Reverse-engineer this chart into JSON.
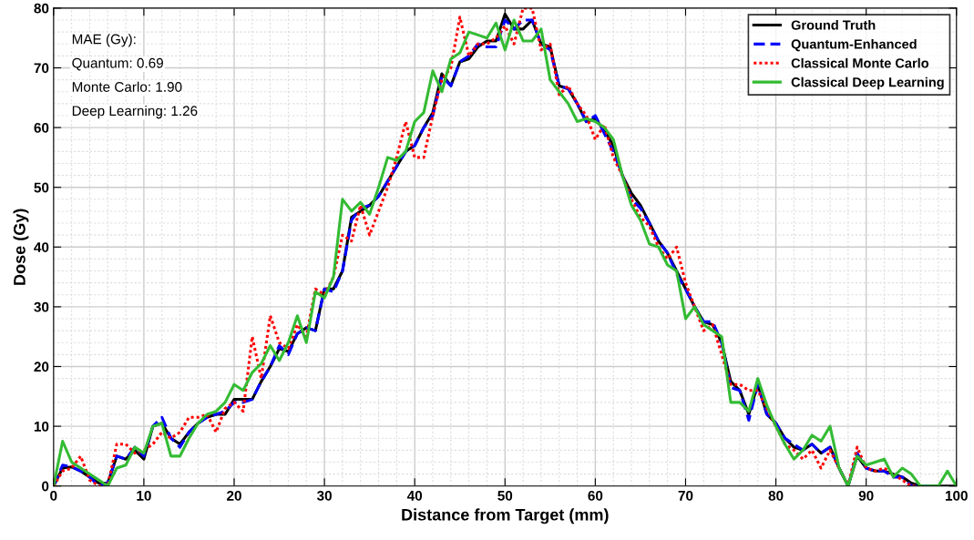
{
  "chart_data": {
    "type": "line",
    "xlabel": "Distance from Target (mm)",
    "ylabel": "Dose (Gy)",
    "x": [
      0,
      1,
      2,
      3,
      4,
      5,
      6,
      7,
      8,
      9,
      10,
      11,
      12,
      13,
      14,
      15,
      16,
      17,
      18,
      19,
      20,
      21,
      22,
      23,
      24,
      25,
      26,
      27,
      28,
      29,
      30,
      31,
      32,
      33,
      34,
      35,
      36,
      37,
      38,
      39,
      40,
      41,
      42,
      43,
      44,
      45,
      46,
      47,
      48,
      49,
      50,
      51,
      52,
      53,
      54,
      55,
      56,
      57,
      58,
      59,
      60,
      61,
      62,
      63,
      64,
      65,
      66,
      67,
      68,
      69,
      70,
      71,
      72,
      73,
      74,
      75,
      76,
      77,
      78,
      79,
      80,
      81,
      82,
      83,
      84,
      85,
      86,
      87,
      88,
      89,
      90,
      91,
      92,
      93,
      94,
      95,
      96,
      97,
      98,
      99,
      100
    ],
    "series": [
      {
        "name": "Ground Truth",
        "color": "#000000",
        "line_style": "solid",
        "values": [
          0,
          3,
          3.2,
          2.5,
          1.5,
          0.5,
          0.5,
          5,
          4.5,
          6,
          4.5,
          10,
          10.5,
          8,
          7,
          9,
          10.5,
          11.5,
          12,
          12,
          14.5,
          14.5,
          14.5,
          17.5,
          20,
          23,
          22.5,
          25.5,
          26.5,
          26,
          33,
          33,
          36,
          45,
          46,
          47,
          48.5,
          51,
          53.5,
          56,
          57,
          60,
          62.5,
          69,
          67,
          71,
          71.5,
          73.5,
          74.5,
          74.5,
          79,
          76.5,
          76.5,
          78,
          74,
          73.5,
          67,
          66.5,
          64,
          61,
          61.5,
          59.5,
          57,
          52,
          49,
          47,
          44,
          41,
          39,
          36,
          33,
          30,
          27.5,
          27,
          24,
          17.5,
          16,
          12,
          17,
          12,
          10.5,
          8,
          6.5,
          6,
          7,
          5.5,
          6.5,
          3,
          0,
          5,
          3,
          2.5,
          2.5,
          2,
          1.5,
          0.5,
          0,
          0,
          0,
          0,
          0
        ]
      },
      {
        "name": "Quantum-Enhanced",
        "color": "#0000ff",
        "line_style": "dashed",
        "values": [
          0,
          3.5,
          3.2,
          2.5,
          1.5,
          0,
          0.5,
          5,
          4.5,
          6.5,
          5,
          10,
          11.5,
          8,
          6.5,
          9,
          10.5,
          11.5,
          12,
          12.5,
          14,
          14,
          14.5,
          17.5,
          20,
          23.5,
          22,
          25.5,
          26.5,
          26,
          33,
          32.5,
          36,
          44.5,
          46.5,
          47,
          48.5,
          51,
          53.5,
          56,
          57,
          60,
          62,
          68.5,
          67,
          71,
          72,
          74,
          73.5,
          73.5,
          78,
          76.5,
          78,
          78,
          74,
          73,
          67,
          66.5,
          64,
          61,
          62,
          59,
          56,
          52,
          48,
          46.5,
          44,
          41,
          39,
          35.5,
          33,
          30,
          27.5,
          27.5,
          24,
          16.5,
          16,
          11,
          17,
          12,
          10.5,
          8,
          7,
          6,
          7,
          5.5,
          6.5,
          3,
          0,
          5.5,
          3,
          2.5,
          2.5,
          1.5,
          1.5,
          0,
          0,
          0,
          null,
          null,
          null
        ]
      },
      {
        "name": "Classical Monte Carlo",
        "color": "#ff0000",
        "line_style": "dotted",
        "values": [
          0,
          2.5,
          3,
          5,
          1,
          0,
          0,
          7,
          7,
          5.5,
          6,
          7,
          9,
          8,
          9,
          11.5,
          11.5,
          12,
          9,
          13,
          14,
          12.5,
          25,
          18,
          28.5,
          24,
          23,
          27,
          25,
          33,
          32,
          35,
          42,
          41,
          47,
          42,
          46,
          50,
          55,
          61,
          55,
          55,
          62,
          68,
          70,
          78.5,
          72,
          74,
          74,
          75,
          77,
          74,
          80,
          80,
          73,
          74,
          65.5,
          67,
          64,
          62,
          58,
          60.5,
          55,
          52,
          48,
          45,
          43.5,
          40,
          38,
          40,
          34,
          30,
          26,
          27,
          22,
          17,
          17,
          16,
          16,
          13,
          10,
          7,
          6,
          4.5,
          6,
          3,
          6,
          3,
          0,
          6.5,
          3,
          2.5,
          3,
          2,
          1,
          0,
          0,
          null,
          null,
          null,
          null
        ]
      },
      {
        "name": "Classical Deep Learning",
        "color": "#33bb33",
        "line_style": "solid",
        "values": [
          0,
          7.5,
          4,
          3,
          2,
          1,
          0,
          3,
          3.5,
          6.5,
          5.5,
          10,
          10.5,
          5,
          5,
          8,
          10.5,
          12,
          12.5,
          14,
          17,
          16,
          19,
          20.5,
          23.5,
          21,
          24,
          28.5,
          24,
          32.5,
          31.5,
          35,
          48,
          46,
          47.5,
          45.5,
          50,
          55,
          54.5,
          56,
          61,
          62.5,
          69.5,
          66,
          71.5,
          72.5,
          76,
          75.5,
          75,
          77.5,
          73,
          78,
          74.5,
          74.5,
          76.5,
          68,
          66,
          64,
          61,
          61.5,
          61,
          60,
          58,
          52,
          47,
          44.5,
          40.5,
          40,
          37,
          36,
          28,
          30,
          27,
          26,
          25,
          14,
          14,
          12.5,
          18,
          13.5,
          10,
          7,
          4.5,
          6,
          8.5,
          7.5,
          10,
          3,
          0,
          5,
          3.5,
          4,
          4.5,
          1.5,
          3,
          2,
          0,
          0,
          0,
          2.5,
          0
        ]
      }
    ],
    "xlim": [
      0,
      100
    ],
    "xticks": [
      0,
      10,
      20,
      30,
      40,
      50,
      60,
      70,
      80,
      90,
      100
    ],
    "ylim": [
      0,
      80
    ],
    "yticks": [
      0,
      10,
      20,
      30,
      40,
      50,
      60,
      70,
      80
    ],
    "grid": true,
    "legend": "top right",
    "annotations": [
      "MAE (Gy):",
      "Quantum: 0.69",
      "Monte Carlo: 1.90",
      "Deep Learning: 1.26"
    ]
  }
}
